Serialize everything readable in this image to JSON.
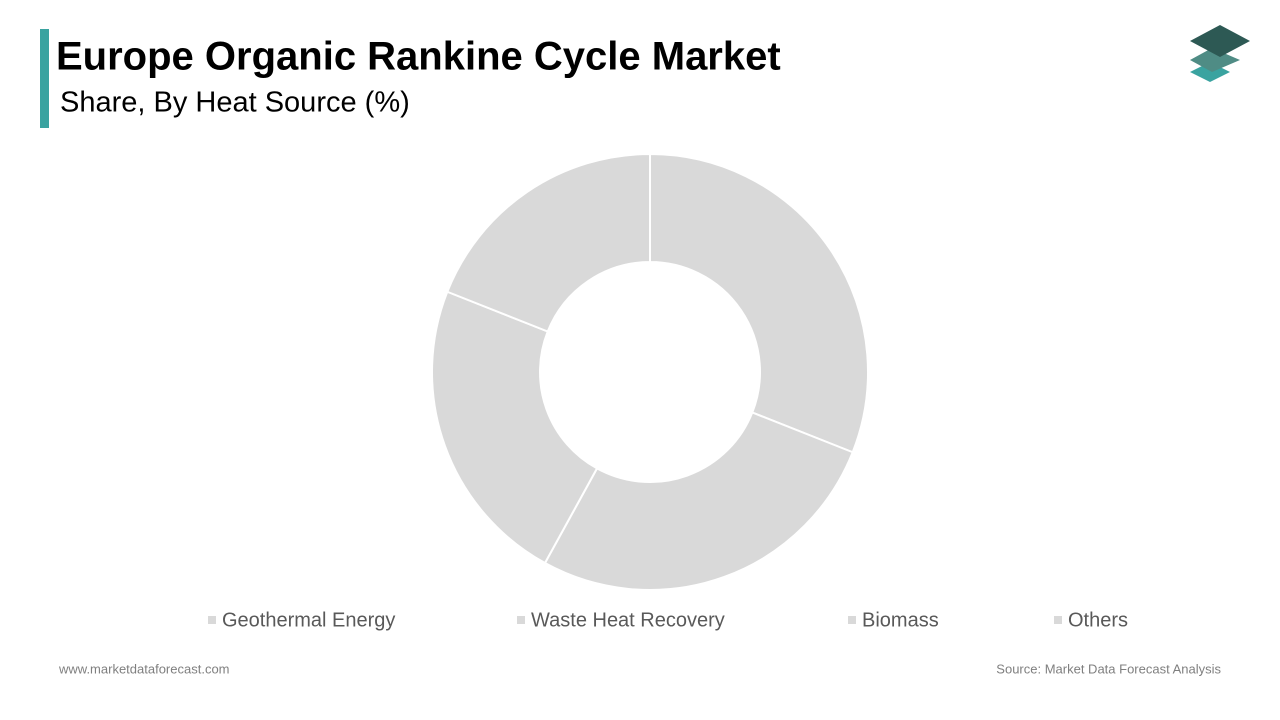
{
  "chart_data": {
    "type": "donut",
    "title": "Europe Organic Rankine Cycle Market",
    "subtitle": "Share, By Heat Source (%)",
    "categories": [
      "Geothermal Energy",
      "Waste Heat Recovery",
      "Biomass",
      "Others"
    ],
    "values": [
      31,
      27,
      23,
      19
    ],
    "colors": [
      "#d9d9d9",
      "#d9d9d9",
      "#d9d9d9",
      "#d9d9d9"
    ],
    "legend": "bottom"
  },
  "footer": {
    "website": "www.marketdataforecast.com",
    "source": "Source: Market Data Forecast Analysis"
  }
}
